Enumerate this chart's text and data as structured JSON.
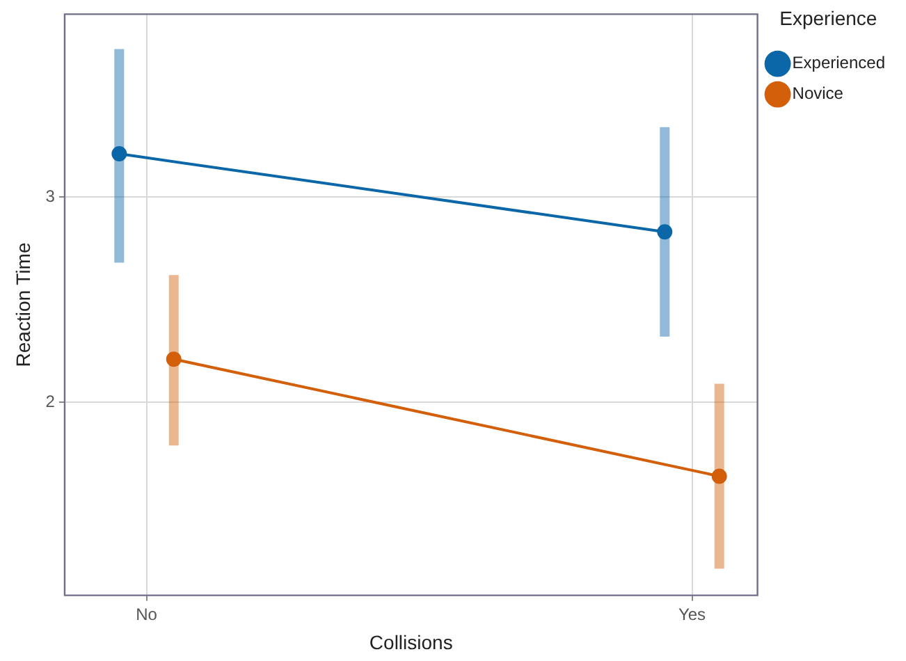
{
  "chart_data": {
    "type": "line",
    "xlabel": "Collisions",
    "ylabel": "Reaction Time",
    "legend_title": "Experience",
    "categories": [
      "No",
      "Yes"
    ],
    "series": [
      {
        "name": "Experienced",
        "color": "#0b67a8",
        "values": [
          3.21,
          2.83
        ],
        "errors": [
          [
            2.68,
            3.72
          ],
          [
            2.32,
            3.34
          ]
        ]
      },
      {
        "name": "Novice",
        "color": "#d35f0a",
        "values": [
          2.21,
          1.64
        ],
        "errors": [
          [
            1.79,
            2.62
          ],
          [
            1.19,
            2.09
          ]
        ]
      }
    ],
    "ylim": [
      1.06,
      3.89
    ],
    "yticks": [
      2,
      3
    ],
    "grid": true,
    "legend": "right",
    "marker": "circle",
    "line_style": "solid"
  }
}
